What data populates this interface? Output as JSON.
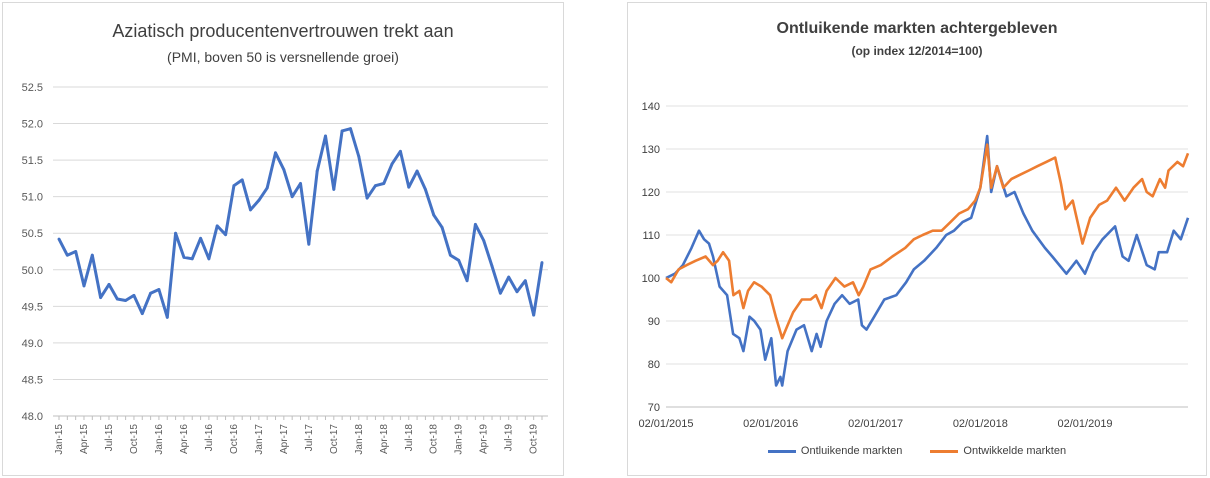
{
  "chart_data": [
    {
      "type": "line",
      "title": "Aziatisch producentenvertrouwen trekt aan",
      "subtitle": "(PMI, boven 50 is versnellende groei)",
      "xlabel": "",
      "ylabel": "",
      "ylim": [
        48.0,
        52.5
      ],
      "yticks": [
        "48.0",
        "48.5",
        "49.0",
        "49.5",
        "50.0",
        "50.5",
        "51.0",
        "51.5",
        "52.0",
        "52.5"
      ],
      "grid": true,
      "x": [
        "Jan-15",
        "Feb-15",
        "Mar-15",
        "Apr-15",
        "May-15",
        "Jun-15",
        "Jul-15",
        "Aug-15",
        "Sep-15",
        "Oct-15",
        "Nov-15",
        "Dec-15",
        "Jan-16",
        "Feb-16",
        "Mar-16",
        "Apr-16",
        "May-16",
        "Jun-16",
        "Jul-16",
        "Aug-16",
        "Sep-16",
        "Oct-16",
        "Nov-16",
        "Dec-16",
        "Jan-17",
        "Feb-17",
        "Mar-17",
        "Apr-17",
        "May-17",
        "Jun-17",
        "Jul-17",
        "Aug-17",
        "Sep-17",
        "Oct-17",
        "Nov-17",
        "Dec-17",
        "Jan-18",
        "Feb-18",
        "Mar-18",
        "Apr-18",
        "May-18",
        "Jun-18",
        "Jul-18",
        "Aug-18",
        "Sep-18",
        "Oct-18",
        "Nov-18",
        "Dec-18",
        "Jan-19",
        "Feb-19",
        "Mar-19",
        "Apr-19",
        "May-19",
        "Jun-19",
        "Jul-19",
        "Aug-19",
        "Sep-19",
        "Oct-19",
        "Nov-19"
      ],
      "xtick_labels": [
        "Jan-15",
        "Apr-15",
        "Jul-15",
        "Oct-15",
        "Jan-16",
        "Apr-16",
        "Jul-16",
        "Oct-16",
        "Jan-17",
        "Apr-17",
        "Jul-17",
        "Oct-17",
        "Jan-18",
        "Apr-18",
        "Jul-18",
        "Oct-18",
        "Jan-19",
        "Apr-19",
        "Jul-19",
        "Oct-19"
      ],
      "series": [
        {
          "color": "#4472c4",
          "values": [
            50.42,
            50.2,
            50.25,
            49.78,
            50.2,
            49.62,
            49.8,
            49.6,
            49.58,
            49.65,
            49.4,
            49.68,
            49.73,
            49.35,
            50.5,
            50.17,
            50.15,
            50.43,
            50.15,
            50.6,
            50.48,
            51.15,
            51.23,
            50.82,
            50.95,
            51.12,
            51.6,
            51.37,
            51.0,
            51.18,
            50.35,
            51.35,
            51.83,
            51.1,
            51.9,
            51.93,
            51.55,
            50.98,
            51.15,
            51.18,
            51.45,
            51.62,
            51.13,
            51.35,
            51.1,
            50.75,
            50.58,
            50.2,
            50.13,
            49.85,
            50.62,
            50.4,
            50.05,
            49.68,
            49.9,
            49.7,
            49.85,
            49.38,
            50.1
          ]
        }
      ]
    },
    {
      "type": "line",
      "title": "Ontluikende markten achtergebleven",
      "subtitle": "(op index 12/2014=100)",
      "xlabel": "",
      "ylabel": "",
      "ylim": [
        70,
        140
      ],
      "yticks": [
        "70",
        "80",
        "90",
        "100",
        "110",
        "120",
        "130",
        "140"
      ],
      "grid": true,
      "xtick_labels": [
        "02/01/2015",
        "02/01/2016",
        "02/01/2017",
        "02/01/2018",
        "02/01/2019"
      ],
      "x_start": "2015-01-02",
      "x_end": "2019-12-27",
      "legend_position": "bottom",
      "series": [
        {
          "name": "Ontluikende markten",
          "color": "#4472c4",
          "points": [
            [
              "2015-01-02",
              100
            ],
            [
              "2015-02-02",
              101
            ],
            [
              "2015-03-02",
              103
            ],
            [
              "2015-04-01",
              107
            ],
            [
              "2015-04-27",
              111
            ],
            [
              "2015-05-15",
              109
            ],
            [
              "2015-06-01",
              108
            ],
            [
              "2015-06-15",
              105
            ],
            [
              "2015-07-08",
              98
            ],
            [
              "2015-08-03",
              96
            ],
            [
              "2015-08-24",
              87
            ],
            [
              "2015-09-15",
              86
            ],
            [
              "2015-09-29",
              83
            ],
            [
              "2015-10-20",
              91
            ],
            [
              "2015-11-06",
              90
            ],
            [
              "2015-11-27",
              88
            ],
            [
              "2015-12-14",
              81
            ],
            [
              "2016-01-04",
              86
            ],
            [
              "2016-01-21",
              75
            ],
            [
              "2016-02-05",
              77
            ],
            [
              "2016-02-11",
              75
            ],
            [
              "2016-03-01",
              83
            ],
            [
              "2016-04-01",
              88
            ],
            [
              "2016-04-27",
              89
            ],
            [
              "2016-05-24",
              83
            ],
            [
              "2016-06-10",
              87
            ],
            [
              "2016-06-24",
              84
            ],
            [
              "2016-07-15",
              90
            ],
            [
              "2016-08-12",
              94
            ],
            [
              "2016-09-07",
              96
            ],
            [
              "2016-10-03",
              94
            ],
            [
              "2016-11-02",
              95
            ],
            [
              "2016-11-15",
              89
            ],
            [
              "2016-12-01",
              88
            ],
            [
              "2016-12-28",
              91
            ],
            [
              "2017-02-01",
              95
            ],
            [
              "2017-03-15",
              96
            ],
            [
              "2017-04-18",
              99
            ],
            [
              "2017-05-15",
              102
            ],
            [
              "2017-06-20",
              104
            ],
            [
              "2017-08-01",
              107
            ],
            [
              "2017-09-05",
              110
            ],
            [
              "2017-10-02",
              111
            ],
            [
              "2017-11-01",
              113
            ],
            [
              "2017-12-01",
              114
            ],
            [
              "2018-01-02",
              121
            ],
            [
              "2018-01-26",
              133
            ],
            [
              "2018-02-09",
              120
            ],
            [
              "2018-03-01",
              126
            ],
            [
              "2018-04-03",
              119
            ],
            [
              "2018-05-01",
              120
            ],
            [
              "2018-06-01",
              115
            ],
            [
              "2018-07-02",
              111
            ],
            [
              "2018-08-15",
              107
            ],
            [
              "2018-09-10",
              105
            ],
            [
              "2018-10-29",
              101
            ],
            [
              "2018-12-03",
              104
            ],
            [
              "2019-01-02",
              101
            ],
            [
              "2019-02-01",
              106
            ],
            [
              "2019-03-04",
              109
            ],
            [
              "2019-04-17",
              112
            ],
            [
              "2019-05-13",
              105
            ],
            [
              "2019-06-03",
              104
            ],
            [
              "2019-07-01",
              110
            ],
            [
              "2019-08-05",
              103
            ],
            [
              "2019-09-02",
              102
            ],
            [
              "2019-09-16",
              106
            ],
            [
              "2019-10-15",
              106
            ],
            [
              "2019-11-07",
              111
            ],
            [
              "2019-12-02",
              109
            ],
            [
              "2019-12-27",
              114
            ]
          ]
        },
        {
          "name": "Ontwikkelde markten",
          "color": "#ed7d31",
          "points": [
            [
              "2015-01-02",
              100
            ],
            [
              "2015-01-20",
              99
            ],
            [
              "2015-02-15",
              102
            ],
            [
              "2015-03-15",
              103
            ],
            [
              "2015-04-15",
              104
            ],
            [
              "2015-05-20",
              105
            ],
            [
              "2015-06-15",
              103
            ],
            [
              "2015-07-01",
              104
            ],
            [
              "2015-07-20",
              106
            ],
            [
              "2015-08-10",
              104
            ],
            [
              "2015-08-25",
              96
            ],
            [
              "2015-09-15",
              97
            ],
            [
              "2015-09-29",
              93
            ],
            [
              "2015-10-15",
              97
            ],
            [
              "2015-11-05",
              99
            ],
            [
              "2015-12-01",
              98
            ],
            [
              "2015-12-31",
              96
            ],
            [
              "2016-01-20",
              91
            ],
            [
              "2016-02-11",
              86
            ],
            [
              "2016-03-01",
              89
            ],
            [
              "2016-03-20",
              92
            ],
            [
              "2016-04-20",
              95
            ],
            [
              "2016-05-20",
              95
            ],
            [
              "2016-06-08",
              96
            ],
            [
              "2016-06-27",
              93
            ],
            [
              "2016-07-15",
              97
            ],
            [
              "2016-08-15",
              100
            ],
            [
              "2016-09-15",
              98
            ],
            [
              "2016-10-15",
              99
            ],
            [
              "2016-11-04",
              96
            ],
            [
              "2016-11-20",
              98
            ],
            [
              "2016-12-15",
              102
            ],
            [
              "2017-01-20",
              103
            ],
            [
              "2017-03-01",
              105
            ],
            [
              "2017-04-15",
              107
            ],
            [
              "2017-05-15",
              109
            ],
            [
              "2017-06-15",
              110
            ],
            [
              "2017-07-20",
              111
            ],
            [
              "2017-08-20",
              111
            ],
            [
              "2017-09-20",
              113
            ],
            [
              "2017-10-20",
              115
            ],
            [
              "2017-11-20",
              116
            ],
            [
              "2017-12-15",
              118
            ],
            [
              "2018-01-02",
              121
            ],
            [
              "2018-01-26",
              131
            ],
            [
              "2018-02-09",
              121
            ],
            [
              "2018-03-01",
              126
            ],
            [
              "2018-03-23",
              121
            ],
            [
              "2018-04-20",
              123
            ],
            [
              "2018-05-20",
              124
            ],
            [
              "2018-06-20",
              125
            ],
            [
              "2018-07-20",
              126
            ],
            [
              "2018-08-20",
              127
            ],
            [
              "2018-09-20",
              128
            ],
            [
              "2018-10-10",
              122
            ],
            [
              "2018-10-26",
              116
            ],
            [
              "2018-11-20",
              118
            ],
            [
              "2018-12-24",
              108
            ],
            [
              "2019-01-20",
              114
            ],
            [
              "2019-02-20",
              117
            ],
            [
              "2019-03-20",
              118
            ],
            [
              "2019-04-20",
              121
            ],
            [
              "2019-05-20",
              118
            ],
            [
              "2019-06-20",
              121
            ],
            [
              "2019-07-20",
              123
            ],
            [
              "2019-08-05",
              120
            ],
            [
              "2019-08-26",
              119
            ],
            [
              "2019-09-20",
              123
            ],
            [
              "2019-10-08",
              121
            ],
            [
              "2019-10-20",
              125
            ],
            [
              "2019-11-20",
              127
            ],
            [
              "2019-12-10",
              126
            ],
            [
              "2019-12-27",
              129
            ]
          ]
        }
      ]
    }
  ]
}
